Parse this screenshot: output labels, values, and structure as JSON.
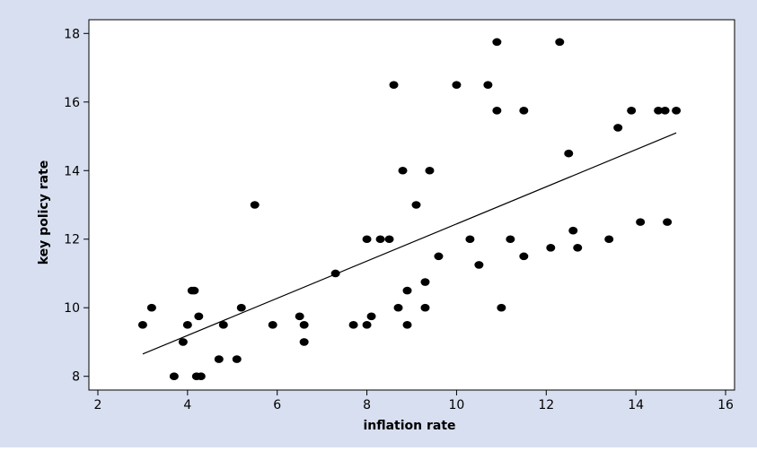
{
  "chart_data": {
    "type": "scatter",
    "xlabel": "inflation rate",
    "ylabel": "key policy rate",
    "xlim": [
      1.8,
      16.2
    ],
    "ylim": [
      7.6,
      18.4
    ],
    "x_ticks": [
      2,
      4,
      6,
      8,
      10,
      12,
      14,
      16
    ],
    "y_ticks": [
      8,
      10,
      12,
      14,
      16,
      18
    ],
    "grid": false,
    "points": [
      {
        "x": 3.0,
        "y": 9.5
      },
      {
        "x": 3.2,
        "y": 10.0
      },
      {
        "x": 3.7,
        "y": 8.0
      },
      {
        "x": 3.9,
        "y": 9.0
      },
      {
        "x": 4.0,
        "y": 9.5
      },
      {
        "x": 4.1,
        "y": 10.5
      },
      {
        "x": 4.15,
        "y": 10.5
      },
      {
        "x": 4.2,
        "y": 8.0
      },
      {
        "x": 4.25,
        "y": 9.75
      },
      {
        "x": 4.3,
        "y": 8.0
      },
      {
        "x": 4.7,
        "y": 8.5
      },
      {
        "x": 4.8,
        "y": 9.5
      },
      {
        "x": 5.1,
        "y": 8.5
      },
      {
        "x": 5.2,
        "y": 10.0
      },
      {
        "x": 5.5,
        "y": 13.0
      },
      {
        "x": 5.9,
        "y": 9.5
      },
      {
        "x": 6.5,
        "y": 9.75
      },
      {
        "x": 6.6,
        "y": 9.5
      },
      {
        "x": 6.6,
        "y": 9.0
      },
      {
        "x": 7.3,
        "y": 11.0
      },
      {
        "x": 7.7,
        "y": 9.5
      },
      {
        "x": 8.0,
        "y": 9.5
      },
      {
        "x": 8.0,
        "y": 12.0
      },
      {
        "x": 8.1,
        "y": 9.75
      },
      {
        "x": 8.3,
        "y": 12.0
      },
      {
        "x": 8.5,
        "y": 12.0
      },
      {
        "x": 8.6,
        "y": 16.5
      },
      {
        "x": 8.7,
        "y": 10.0
      },
      {
        "x": 8.8,
        "y": 14.0
      },
      {
        "x": 8.9,
        "y": 10.5
      },
      {
        "x": 8.9,
        "y": 9.5
      },
      {
        "x": 9.1,
        "y": 13.0
      },
      {
        "x": 9.3,
        "y": 10.75
      },
      {
        "x": 9.3,
        "y": 10.0
      },
      {
        "x": 9.4,
        "y": 14.0
      },
      {
        "x": 9.6,
        "y": 11.5
      },
      {
        "x": 10.0,
        "y": 16.5
      },
      {
        "x": 10.3,
        "y": 12.0
      },
      {
        "x": 10.5,
        "y": 11.25
      },
      {
        "x": 10.7,
        "y": 16.5
      },
      {
        "x": 10.9,
        "y": 17.75
      },
      {
        "x": 10.9,
        "y": 15.75
      },
      {
        "x": 11.0,
        "y": 10.0
      },
      {
        "x": 11.2,
        "y": 12.0
      },
      {
        "x": 11.5,
        "y": 15.75
      },
      {
        "x": 11.5,
        "y": 11.5
      },
      {
        "x": 12.1,
        "y": 11.75
      },
      {
        "x": 12.3,
        "y": 17.75
      },
      {
        "x": 12.5,
        "y": 14.5
      },
      {
        "x": 12.6,
        "y": 12.25
      },
      {
        "x": 12.7,
        "y": 11.75
      },
      {
        "x": 13.4,
        "y": 12.0
      },
      {
        "x": 13.6,
        "y": 15.25
      },
      {
        "x": 13.9,
        "y": 15.75
      },
      {
        "x": 14.1,
        "y": 12.5
      },
      {
        "x": 14.5,
        "y": 15.75
      },
      {
        "x": 14.65,
        "y": 15.75
      },
      {
        "x": 14.7,
        "y": 12.5
      },
      {
        "x": 14.9,
        "y": 15.75
      }
    ],
    "fit_line": {
      "x": [
        3.0,
        14.9
      ],
      "y": [
        8.65,
        15.1
      ]
    }
  },
  "colors": {
    "background": "#d8dff0",
    "plot_background": "#ffffff",
    "points": "#000000",
    "line": "#000000",
    "axis": "#000000"
  }
}
